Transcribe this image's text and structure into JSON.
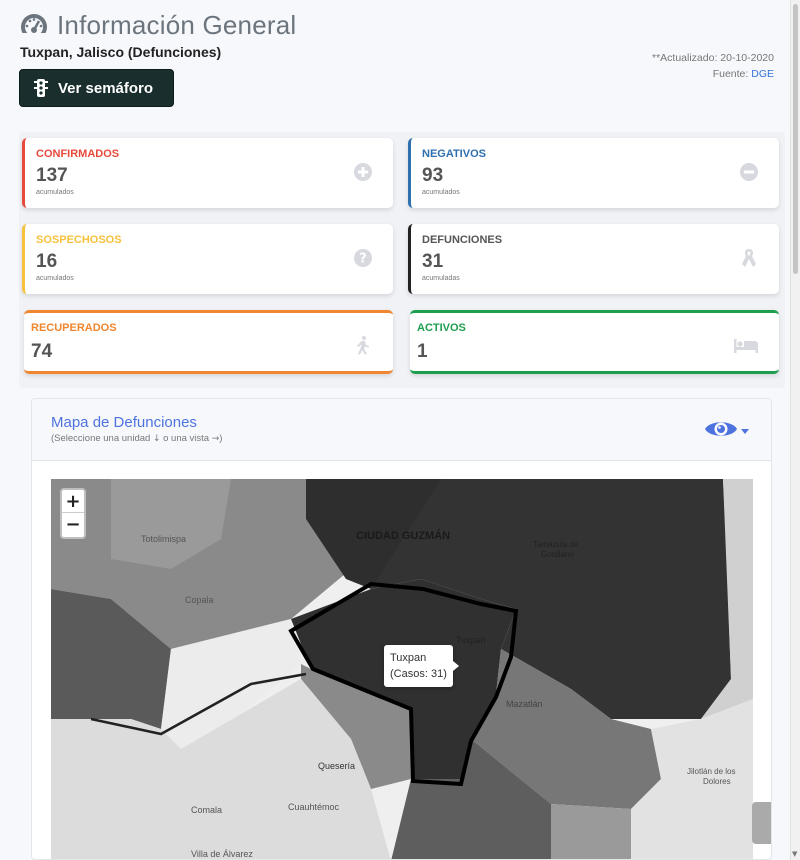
{
  "header": {
    "title": "Información General",
    "location": "Tuxpan, Jalisco (Defunciones)",
    "semaforo_label": "Ver semáforo",
    "updated": "**Actualizado: 20-10-2020",
    "source_prefix": "Fuente:",
    "source_link": "DGE"
  },
  "cards": [
    {
      "label": "CONFIRMADOS",
      "value": "137",
      "sub": "acumulados",
      "color": "#e74a3b",
      "icon": "plus-circle-icon"
    },
    {
      "label": "NEGATIVOS",
      "value": "93",
      "sub": "acumulados",
      "color": "#2e6fb0",
      "icon": "minus-circle-icon"
    },
    {
      "label": "SOSPECHOSOS",
      "value": "16",
      "sub": "acumulados",
      "color": "#f6c23e",
      "icon": "question-circle-icon"
    },
    {
      "label": "DEFUNCIONES",
      "value": "31",
      "sub": "acumuladas",
      "color": "#222222",
      "icon": "ribbon-icon"
    },
    {
      "label": "RECUPERADOS",
      "value": "74",
      "sub": "",
      "color": "#f0862f",
      "icon": "walking-icon"
    },
    {
      "label": "ACTIVOS",
      "value": "1",
      "sub": "",
      "color": "#1e9e4f",
      "icon": "bed-icon"
    }
  ],
  "map": {
    "title": "Mapa de Defunciones",
    "hint": "(Seleccione una unidad ➜ o una vista ➜)",
    "hint_a": "(Seleccione una unidad",
    "hint_b": "o una vista",
    "hint_c": ")",
    "zoom_in": "+",
    "zoom_out": "−",
    "tooltip_name": "Tuxpan",
    "tooltip_cases": "(Casos: 31)",
    "places": [
      "Totolimispa",
      "CIUDAD GUZMÁN",
      "Tamazula de",
      "Gordiano",
      "Copala",
      "Tuxpan",
      "Pihuamo",
      "Mazatlán",
      "Quesería",
      "Comala",
      "Cuauhtémoc",
      "Villa de Álvarez",
      "Jilotlán de los",
      "Dolores"
    ]
  }
}
